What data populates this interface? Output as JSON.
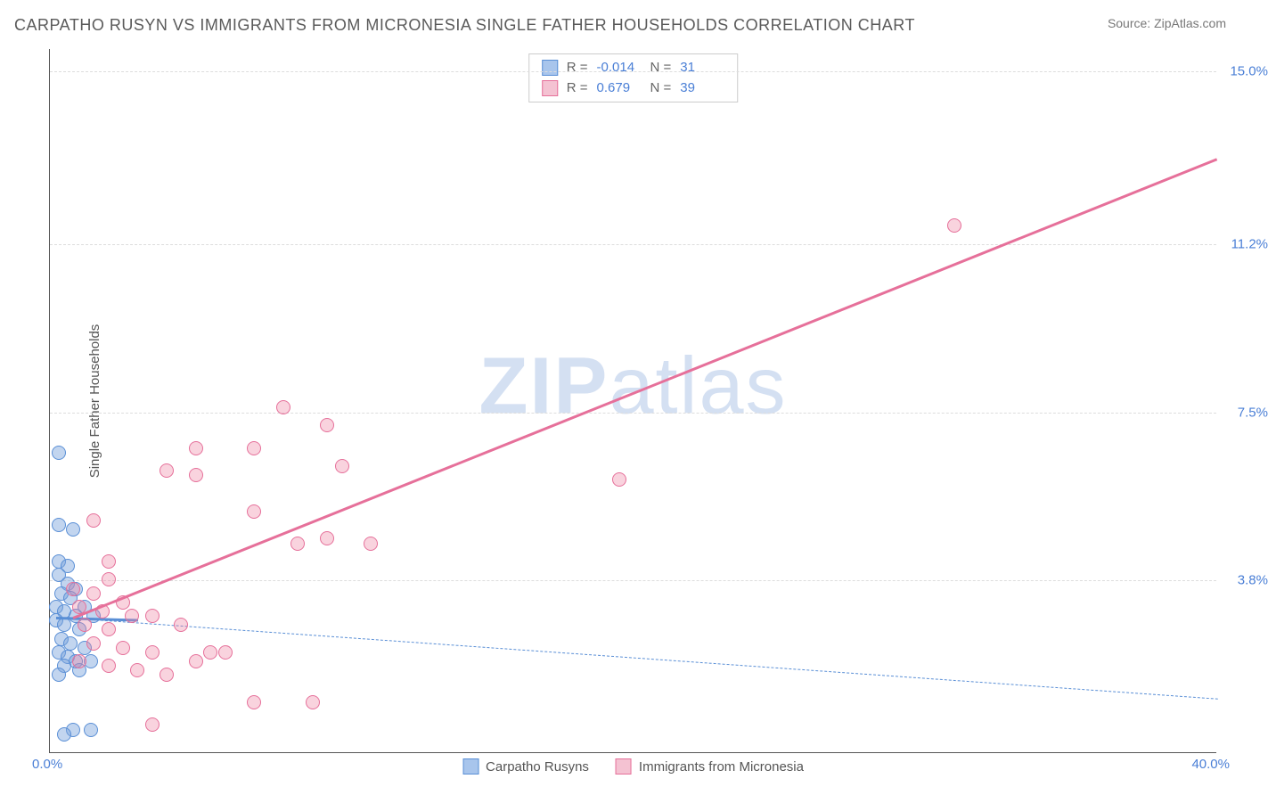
{
  "header": {
    "title": "CARPATHO RUSYN VS IMMIGRANTS FROM MICRONESIA SINGLE FATHER HOUSEHOLDS CORRELATION CHART",
    "source": "Source: ZipAtlas.com"
  },
  "chart": {
    "type": "scatter",
    "y_axis_title": "Single Father Households",
    "x_min_label": "0.0%",
    "x_max_label": "40.0%",
    "x_min": 0.0,
    "x_max": 40.0,
    "y_min": 0.0,
    "y_max": 15.5,
    "y_ticks": [
      {
        "value": 15.0,
        "label": "15.0%"
      },
      {
        "value": 11.2,
        "label": "11.2%"
      },
      {
        "value": 7.5,
        "label": "7.5%"
      },
      {
        "value": 3.8,
        "label": "3.8%"
      }
    ],
    "grid_color": "#dddddd",
    "background": "#ffffff",
    "watermark_text_bold": "ZIP",
    "watermark_text_light": "atlas",
    "watermark_color": "#d4e0f2",
    "series": {
      "blue": {
        "name": "Carpatho Rusyns",
        "fill": "rgba(120,162,220,0.45)",
        "stroke": "#5a8fd6",
        "swatch_fill": "#a8c5ec",
        "swatch_stroke": "#5a8fd6",
        "marker_radius": 8,
        "trend": {
          "type": "dashed",
          "color": "#5a8fd6",
          "width": 1.5,
          "x1": 0.2,
          "y1": 3.0,
          "x2": 40.0,
          "y2": 1.2
        },
        "solid_segment": {
          "x1": 0.2,
          "y1": 3.0,
          "x2": 3.0,
          "y2": 2.95,
          "width": 3
        },
        "points": [
          {
            "x": 0.3,
            "y": 6.6
          },
          {
            "x": 0.3,
            "y": 5.0
          },
          {
            "x": 0.8,
            "y": 4.9
          },
          {
            "x": 0.3,
            "y": 4.2
          },
          {
            "x": 0.6,
            "y": 4.1
          },
          {
            "x": 0.3,
            "y": 3.9
          },
          {
            "x": 0.6,
            "y": 3.7
          },
          {
            "x": 0.9,
            "y": 3.6
          },
          {
            "x": 0.4,
            "y": 3.5
          },
          {
            "x": 0.7,
            "y": 3.4
          },
          {
            "x": 0.2,
            "y": 3.2
          },
          {
            "x": 1.2,
            "y": 3.2
          },
          {
            "x": 0.5,
            "y": 3.1
          },
          {
            "x": 0.9,
            "y": 3.0
          },
          {
            "x": 1.5,
            "y": 3.0
          },
          {
            "x": 0.2,
            "y": 2.9
          },
          {
            "x": 0.5,
            "y": 2.8
          },
          {
            "x": 1.0,
            "y": 2.7
          },
          {
            "x": 0.4,
            "y": 2.5
          },
          {
            "x": 0.7,
            "y": 2.4
          },
          {
            "x": 1.2,
            "y": 2.3
          },
          {
            "x": 0.3,
            "y": 2.2
          },
          {
            "x": 0.6,
            "y": 2.1
          },
          {
            "x": 0.9,
            "y": 2.0
          },
          {
            "x": 1.4,
            "y": 2.0
          },
          {
            "x": 0.5,
            "y": 1.9
          },
          {
            "x": 1.0,
            "y": 1.8
          },
          {
            "x": 0.3,
            "y": 1.7
          },
          {
            "x": 0.8,
            "y": 0.5
          },
          {
            "x": 1.4,
            "y": 0.5
          },
          {
            "x": 0.5,
            "y": 0.4
          }
        ]
      },
      "pink": {
        "name": "Immigrants from Micronesia",
        "fill": "rgba(237,130,160,0.35)",
        "stroke": "#e6709a",
        "swatch_fill": "#f4c2d2",
        "swatch_stroke": "#e6709a",
        "marker_radius": 8,
        "trend": {
          "type": "solid",
          "color": "#e6709a",
          "width": 3,
          "x1": 0.8,
          "y1": 3.0,
          "x2": 40.0,
          "y2": 13.1
        },
        "points": [
          {
            "x": 31.0,
            "y": 11.6
          },
          {
            "x": 8.0,
            "y": 7.6
          },
          {
            "x": 9.5,
            "y": 7.2
          },
          {
            "x": 5.0,
            "y": 6.7
          },
          {
            "x": 7.0,
            "y": 6.7
          },
          {
            "x": 4.0,
            "y": 6.2
          },
          {
            "x": 5.0,
            "y": 6.1
          },
          {
            "x": 10.0,
            "y": 6.3
          },
          {
            "x": 19.5,
            "y": 6.0
          },
          {
            "x": 1.5,
            "y": 5.1
          },
          {
            "x": 7.0,
            "y": 5.3
          },
          {
            "x": 8.5,
            "y": 4.6
          },
          {
            "x": 9.5,
            "y": 4.7
          },
          {
            "x": 11.0,
            "y": 4.6
          },
          {
            "x": 2.0,
            "y": 4.2
          },
          {
            "x": 0.8,
            "y": 3.6
          },
          {
            "x": 1.5,
            "y": 3.5
          },
          {
            "x": 2.5,
            "y": 3.3
          },
          {
            "x": 1.0,
            "y": 3.2
          },
          {
            "x": 1.8,
            "y": 3.1
          },
          {
            "x": 2.8,
            "y": 3.0
          },
          {
            "x": 3.5,
            "y": 3.0
          },
          {
            "x": 1.2,
            "y": 2.8
          },
          {
            "x": 2.0,
            "y": 2.7
          },
          {
            "x": 4.5,
            "y": 2.8
          },
          {
            "x": 1.5,
            "y": 2.4
          },
          {
            "x": 2.5,
            "y": 2.3
          },
          {
            "x": 3.5,
            "y": 2.2
          },
          {
            "x": 5.5,
            "y": 2.2
          },
          {
            "x": 1.0,
            "y": 2.0
          },
          {
            "x": 2.0,
            "y": 1.9
          },
          {
            "x": 3.0,
            "y": 1.8
          },
          {
            "x": 4.0,
            "y": 1.7
          },
          {
            "x": 5.0,
            "y": 2.0
          },
          {
            "x": 6.0,
            "y": 2.2
          },
          {
            "x": 7.0,
            "y": 1.1
          },
          {
            "x": 9.0,
            "y": 1.1
          },
          {
            "x": 3.5,
            "y": 0.6
          },
          {
            "x": 2.0,
            "y": 3.8
          }
        ]
      }
    },
    "stats": {
      "rows": [
        {
          "series": "blue",
          "r_label": "R =",
          "r": "-0.014",
          "n_label": "N =",
          "n": "31"
        },
        {
          "series": "pink",
          "r_label": "R =",
          "r": "0.679",
          "n_label": "N =",
          "n": "39"
        }
      ]
    }
  }
}
